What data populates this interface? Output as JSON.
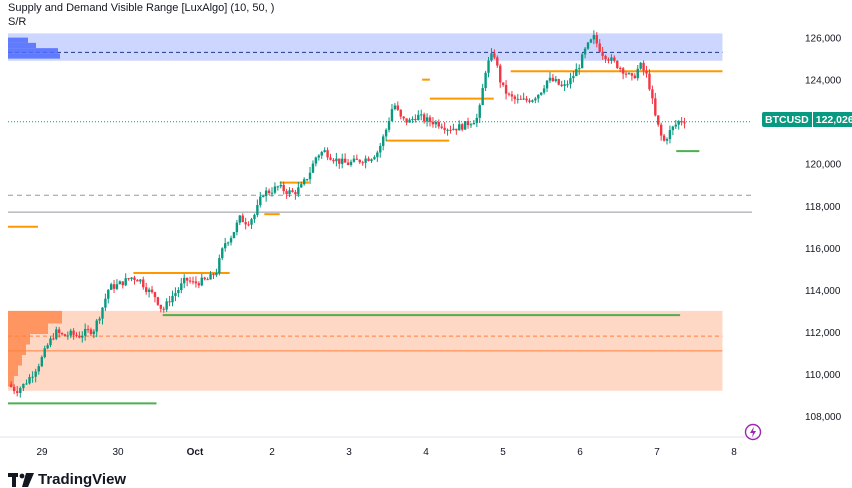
{
  "legend": {
    "title": "Supply and Demand Visible Range [LuxAlgo] (10, 50, )",
    "subtitle": "S/R"
  },
  "symbol": "BTCUSD",
  "last_price_label": "122,026",
  "brand": {
    "name": "TradingView"
  },
  "icons": {
    "logo": "tradingview-logo-icon",
    "action": "lightning-icon"
  },
  "colors": {
    "up": "#089981",
    "down": "#f23645",
    "supply_zone": "#4d6bfe",
    "demand_zone": "#ff7f3f",
    "resistance": "#ff9800",
    "support": "#4caf50"
  },
  "chart_data": {
    "type": "candlestick",
    "ylim": [
      107000,
      126600
    ],
    "y_ticks": [
      108000,
      110000,
      112000,
      114000,
      116000,
      118000,
      120000,
      122000,
      124000,
      126000
    ],
    "y_tick_labels": [
      "108,000",
      "110,000",
      "112,000",
      "114,000",
      "116,000",
      "118,000",
      "120,000",
      "122,000",
      "124,000",
      "126,000"
    ],
    "x_ticks": [
      {
        "t": 1,
        "label": "29"
      },
      {
        "t": 2,
        "label": "30"
      },
      {
        "t": 3,
        "label": "Oct"
      },
      {
        "t": 4,
        "label": "2"
      },
      {
        "t": 5,
        "label": "3"
      },
      {
        "t": 6,
        "label": "4"
      },
      {
        "t": 7,
        "label": "5"
      },
      {
        "t": 8,
        "label": "6"
      },
      {
        "t": 9,
        "label": "7"
      },
      {
        "t": 10,
        "label": "8"
      }
    ],
    "xlim": [
      0.58,
      10.28
    ],
    "path": [
      [
        0.58,
        109.5
      ],
      [
        0.68,
        109.2
      ],
      [
        0.78,
        109.5
      ],
      [
        0.88,
        110.0
      ],
      [
        0.98,
        110.6
      ],
      [
        1.08,
        111.4
      ],
      [
        1.18,
        112.0
      ],
      [
        1.28,
        111.8
      ],
      [
        1.38,
        111.9
      ],
      [
        1.48,
        111.8
      ],
      [
        1.58,
        112.0
      ],
      [
        1.68,
        112.1
      ],
      [
        1.78,
        113.0
      ],
      [
        1.88,
        114.1
      ],
      [
        1.98,
        114.2
      ],
      [
        2.08,
        114.4
      ],
      [
        2.18,
        114.6
      ],
      [
        2.28,
        114.5
      ],
      [
        2.38,
        114.0
      ],
      [
        2.48,
        113.7
      ],
      [
        2.58,
        113.0
      ],
      [
        2.68,
        113.6
      ],
      [
        2.78,
        114.0
      ],
      [
        2.88,
        114.5
      ],
      [
        2.98,
        114.3
      ],
      [
        3.08,
        114.4
      ],
      [
        3.18,
        114.5
      ],
      [
        3.28,
        114.9
      ],
      [
        3.38,
        116.2
      ],
      [
        3.48,
        116.6
      ],
      [
        3.58,
        117.4
      ],
      [
        3.68,
        117.2
      ],
      [
        3.78,
        117.6
      ],
      [
        3.88,
        118.6
      ],
      [
        3.98,
        118.7
      ],
      [
        4.08,
        118.9
      ],
      [
        4.18,
        118.7
      ],
      [
        4.28,
        118.6
      ],
      [
        4.38,
        118.9
      ],
      [
        4.48,
        119.5
      ],
      [
        4.58,
        120.4
      ],
      [
        4.68,
        120.6
      ],
      [
        4.78,
        120.3
      ],
      [
        4.88,
        120.1
      ],
      [
        4.98,
        120.0
      ],
      [
        5.08,
        120.1
      ],
      [
        5.18,
        120.2
      ],
      [
        5.28,
        120.3
      ],
      [
        5.38,
        120.6
      ],
      [
        5.48,
        121.6
      ],
      [
        5.58,
        122.9
      ],
      [
        5.68,
        122.1
      ],
      [
        5.78,
        122.0
      ],
      [
        5.88,
        122.3
      ],
      [
        5.98,
        122.1
      ],
      [
        6.08,
        122.0
      ],
      [
        6.18,
        121.9
      ],
      [
        6.28,
        121.7
      ],
      [
        6.38,
        121.7
      ],
      [
        6.48,
        121.8
      ],
      [
        6.58,
        122.0
      ],
      [
        6.68,
        122.2
      ],
      [
        6.78,
        124.6
      ],
      [
        6.88,
        125.3
      ],
      [
        6.98,
        123.7
      ],
      [
        7.08,
        123.2
      ],
      [
        7.18,
        123.0
      ],
      [
        7.28,
        123.0
      ],
      [
        7.38,
        123.1
      ],
      [
        7.48,
        123.4
      ],
      [
        7.58,
        124.0
      ],
      [
        7.68,
        123.9
      ],
      [
        7.78,
        123.6
      ],
      [
        7.88,
        124.0
      ],
      [
        7.98,
        124.6
      ],
      [
        8.08,
        125.5
      ],
      [
        8.18,
        126.0
      ],
      [
        8.28,
        125.3
      ],
      [
        8.38,
        125.0
      ],
      [
        8.48,
        124.7
      ],
      [
        8.58,
        124.4
      ],
      [
        8.68,
        124.0
      ],
      [
        8.78,
        124.7
      ],
      [
        8.88,
        124.1
      ],
      [
        8.98,
        122.2
      ],
      [
        9.08,
        121.0
      ],
      [
        9.18,
        121.6
      ],
      [
        9.28,
        122.0
      ],
      [
        9.38,
        122.1
      ]
    ],
    "zones": [
      {
        "kind": "supply",
        "top": 126.2,
        "bottom": 124.9,
        "x0": 0.58,
        "x1": 9.85,
        "mid": 125.3
      },
      {
        "kind": "demand",
        "top": 113.0,
        "bottom": 109.2,
        "x0": 0.58,
        "x1": 9.85,
        "mid": 111.1,
        "dash": 111.8
      }
    ],
    "levels": [
      {
        "kind": "resistance",
        "y": 117.0,
        "x0": 0.58,
        "x1": 0.95
      },
      {
        "kind": "resistance",
        "y": 114.8,
        "x0": 2.2,
        "x1": 3.45
      },
      {
        "kind": "resistance",
        "y": 117.6,
        "x0": 3.9,
        "x1": 4.1
      },
      {
        "kind": "resistance",
        "y": 119.1,
        "x0": 4.1,
        "x1": 4.48
      },
      {
        "kind": "resistance",
        "y": 121.1,
        "x0": 5.48,
        "x1": 6.3
      },
      {
        "kind": "resistance",
        "y": 124.0,
        "x0": 5.95,
        "x1": 6.05
      },
      {
        "kind": "resistance",
        "y": 123.1,
        "x0": 6.05,
        "x1": 6.88
      },
      {
        "kind": "resistance",
        "y": 124.4,
        "x0": 7.1,
        "x1": 9.85
      },
      {
        "kind": "support",
        "y": 112.8,
        "x0": 2.58,
        "x1": 9.3
      },
      {
        "kind": "support",
        "y": 108.6,
        "x0": 0.58,
        "x1": 2.5
      },
      {
        "kind": "support",
        "y": 120.6,
        "x0": 9.25,
        "x1": 9.55
      }
    ],
    "reference_lines": [
      {
        "y": 118.5,
        "style": "dashed"
      },
      {
        "y": 117.7,
        "style": "solid"
      },
      {
        "y": 122.0,
        "style": "dotted-current"
      }
    ]
  }
}
